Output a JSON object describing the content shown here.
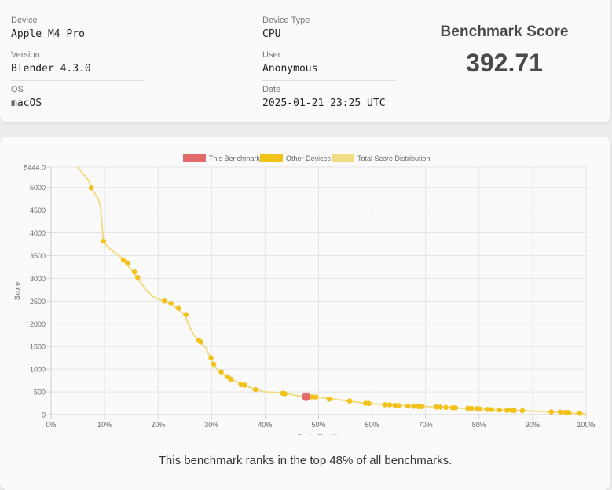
{
  "info": {
    "device_label": "Device",
    "device_value": "Apple M4 Pro",
    "version_label": "Version",
    "version_value": "Blender 4.3.0",
    "os_label": "OS",
    "os_value": "macOS",
    "device_type_label": "Device Type",
    "device_type_value": "CPU",
    "user_label": "User",
    "user_value": "Anonymous",
    "date_label": "Date",
    "date_value": "2025-01-21 23:25 UTC"
  },
  "score": {
    "title": "Benchmark Score",
    "value": "392.71"
  },
  "caption": "This benchmark ranks in the top 48% of all benchmarks.",
  "colors": {
    "this_benchmark": "#e36a6a",
    "other_devices": "#f2c21b",
    "distribution": "#f0dc82"
  },
  "chart_data": {
    "type": "scatter",
    "xlabel": "Rank (Top %)",
    "ylabel": "Score",
    "xlim": [
      0,
      100
    ],
    "ylim": [
      0,
      5444.0
    ],
    "x_ticks": [
      "0%",
      "10%",
      "20%",
      "30%",
      "40%",
      "50%",
      "60%",
      "70%",
      "80%",
      "90%",
      "100%"
    ],
    "x_tick_values": [
      0,
      10,
      20,
      30,
      40,
      50,
      60,
      70,
      80,
      90,
      100
    ],
    "y_ticks": [
      "0",
      "500",
      "1000",
      "1500",
      "2000",
      "2500",
      "3000",
      "3500",
      "4000",
      "4500",
      "5000",
      "5444.0"
    ],
    "y_tick_values": [
      0,
      500,
      1000,
      1500,
      2000,
      2500,
      3000,
      3500,
      4000,
      4500,
      5000,
      5444
    ],
    "grid": true,
    "legend": [
      "This Benchmark",
      "Other Devices",
      "Total Score Distribution"
    ],
    "legend_position": "top-center",
    "series": [
      {
        "name": "Total Score Distribution",
        "type": "line",
        "points": [
          [
            5.0,
            5444
          ],
          [
            6.0,
            5300
          ],
          [
            7.0,
            5150
          ],
          [
            7.5,
            5000
          ],
          [
            8.0,
            4900
          ],
          [
            8.8,
            4750
          ],
          [
            9.2,
            4600
          ],
          [
            9.5,
            4200
          ],
          [
            9.8,
            3820
          ],
          [
            10.5,
            3700
          ],
          [
            11.5,
            3600
          ],
          [
            13.0,
            3470
          ],
          [
            14.0,
            3330
          ],
          [
            15.3,
            3150
          ],
          [
            16.0,
            3030
          ],
          [
            17.5,
            2780
          ],
          [
            19.0,
            2600
          ],
          [
            21.0,
            2500
          ],
          [
            22.0,
            2460
          ],
          [
            23.5,
            2340
          ],
          [
            25.0,
            2200
          ],
          [
            26.0,
            1900
          ],
          [
            27.0,
            1700
          ],
          [
            28.0,
            1600
          ],
          [
            29.0,
            1450
          ],
          [
            29.8,
            1250
          ],
          [
            30.3,
            1100
          ],
          [
            31.5,
            940
          ],
          [
            33.0,
            830
          ],
          [
            34.5,
            730
          ],
          [
            36.0,
            660
          ],
          [
            38.0,
            560
          ],
          [
            40.0,
            500
          ],
          [
            43.0,
            480
          ],
          [
            46.0,
            420
          ],
          [
            47.7,
            393
          ],
          [
            50.0,
            380
          ],
          [
            53.0,
            340
          ],
          [
            56.0,
            290
          ],
          [
            60.0,
            240
          ],
          [
            65.0,
            200
          ],
          [
            70.0,
            180
          ],
          [
            75.0,
            150
          ],
          [
            80.0,
            120
          ],
          [
            85.0,
            100
          ],
          [
            90.0,
            80
          ],
          [
            95.0,
            50
          ],
          [
            100.0,
            10
          ]
        ]
      },
      {
        "name": "Other Devices",
        "type": "scatter",
        "points": [
          [
            7.5,
            4990
          ],
          [
            9.8,
            3820
          ],
          [
            13.5,
            3400
          ],
          [
            14.3,
            3340
          ],
          [
            15.6,
            3140
          ],
          [
            16.2,
            3020
          ],
          [
            21.2,
            2500
          ],
          [
            22.4,
            2450
          ],
          [
            23.8,
            2340
          ],
          [
            25.2,
            2200
          ],
          [
            27.6,
            1630
          ],
          [
            28.0,
            1600
          ],
          [
            29.9,
            1250
          ],
          [
            30.4,
            1110
          ],
          [
            31.8,
            940
          ],
          [
            33.0,
            830
          ],
          [
            33.6,
            780
          ],
          [
            35.5,
            660
          ],
          [
            36.2,
            650
          ],
          [
            38.2,
            550
          ],
          [
            43.3,
            470
          ],
          [
            43.7,
            460
          ],
          [
            48.8,
            390
          ],
          [
            49.5,
            385
          ],
          [
            52.0,
            340
          ],
          [
            55.8,
            300
          ],
          [
            58.8,
            250
          ],
          [
            59.4,
            245
          ],
          [
            62.4,
            220
          ],
          [
            63.3,
            215
          ],
          [
            64.3,
            205
          ],
          [
            65.0,
            200
          ],
          [
            66.7,
            190
          ],
          [
            67.8,
            185
          ],
          [
            68.6,
            180
          ],
          [
            69.3,
            175
          ],
          [
            72.0,
            170
          ],
          [
            72.8,
            165
          ],
          [
            73.8,
            160
          ],
          [
            75.0,
            150
          ],
          [
            75.6,
            150
          ],
          [
            77.9,
            140
          ],
          [
            78.6,
            135
          ],
          [
            79.6,
            130
          ],
          [
            80.1,
            125
          ],
          [
            81.5,
            115
          ],
          [
            82.3,
            110
          ],
          [
            83.8,
            100
          ],
          [
            85.2,
            95
          ],
          [
            86.0,
            95
          ],
          [
            86.6,
            90
          ],
          [
            88.1,
            85
          ],
          [
            93.5,
            60
          ],
          [
            95.2,
            55
          ],
          [
            96.2,
            50
          ],
          [
            96.8,
            45
          ],
          [
            98.8,
            30
          ]
        ]
      },
      {
        "name": "This Benchmark",
        "type": "scatter",
        "points": [
          [
            47.7,
            393
          ]
        ]
      }
    ]
  }
}
